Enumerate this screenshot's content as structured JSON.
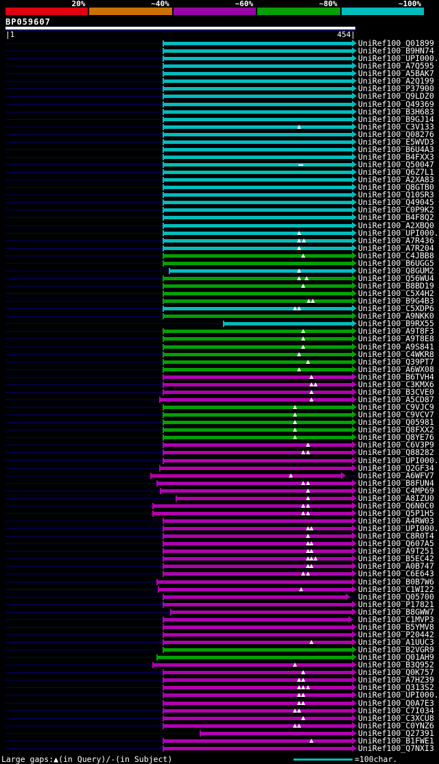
{
  "colors": {
    "cyan": "#00bcbc",
    "green": "#00a000",
    "magenta": "#b000b0",
    "red": "#e00010",
    "orange": "#cc7000",
    "purple": "#9900aa",
    "navy": "#000066",
    "background": "#000000",
    "text": "#ffffff"
  },
  "scale_bar": {
    "segments": [
      {
        "label": "20%",
        "color_key": "red"
      },
      {
        "label": "~40%",
        "color_key": "orange"
      },
      {
        "label": "~60%",
        "color_key": "purple"
      },
      {
        "label": "~80%",
        "color_key": "green"
      },
      {
        "label": "~100%",
        "color_key": "cyan"
      }
    ]
  },
  "query": {
    "name": "BP059607",
    "start": 1,
    "end": 454,
    "start_label": "|1",
    "end_label": "454|"
  },
  "footer": {
    "gaps_legend": "Large gaps:▲(in Query)/-(in Subject)",
    "scale_text": "=100char.",
    "scale_length_chars": 100
  },
  "chart_data": {
    "type": "bar",
    "orientation": "horizontal-range",
    "title": "BP059607",
    "xlabel": "query residue position",
    "x_range": [
      1,
      454
    ],
    "legend": "bar color encodes % identity: red 20%, orange ~40%, purple ~60%, green ~80%, cyan ~100%",
    "hits": [
      {
        "label": "UniRef100_Q01899",
        "color": "cyan",
        "start": 204,
        "end": 454
      },
      {
        "label": "UniRef100_B9HN74",
        "color": "cyan",
        "start": 204,
        "end": 454
      },
      {
        "label": "UniRef100_UPI000..",
        "color": "cyan",
        "start": 204,
        "end": 454
      },
      {
        "label": "UniRef100_A7Q595",
        "color": "cyan",
        "start": 204,
        "end": 454
      },
      {
        "label": "UniRef100_A5BAK7",
        "color": "cyan",
        "start": 204,
        "end": 454
      },
      {
        "label": "UniRef100_A2Q199",
        "color": "cyan",
        "start": 204,
        "end": 454
      },
      {
        "label": "UniRef100_P37900",
        "color": "cyan",
        "start": 204,
        "end": 454
      },
      {
        "label": "UniRef100_Q9LDZ0",
        "color": "cyan",
        "start": 204,
        "end": 454
      },
      {
        "label": "UniRef100_Q49369",
        "color": "cyan",
        "start": 204,
        "end": 454
      },
      {
        "label": "UniRef100_B3H683",
        "color": "cyan",
        "start": 204,
        "end": 454
      },
      {
        "label": "UniRef100_B9GJ14",
        "color": "cyan",
        "start": 204,
        "end": 454
      },
      {
        "label": "UniRef100_C3V133",
        "color": "cyan",
        "start": 204,
        "end": 454,
        "gaps": [
          382
        ]
      },
      {
        "label": "UniRef100_Q08276",
        "color": "cyan",
        "start": 204,
        "end": 454
      },
      {
        "label": "UniRef100_E5WVD3",
        "color": "cyan",
        "start": 204,
        "end": 454
      },
      {
        "label": "UniRef100_B6U4A3",
        "color": "cyan",
        "start": 204,
        "end": 454
      },
      {
        "label": "UniRef100_B4FXX3",
        "color": "cyan",
        "start": 204,
        "end": 454
      },
      {
        "label": "UniRef100_Q50047",
        "color": "cyan",
        "start": 204,
        "end": 454,
        "dashes": [
          383
        ]
      },
      {
        "label": "UniRef100_Q6Z7L1",
        "color": "cyan",
        "start": 204,
        "end": 454
      },
      {
        "label": "UniRef100_A2XA83",
        "color": "cyan",
        "start": 204,
        "end": 454
      },
      {
        "label": "UniRef100_Q8GTB0",
        "color": "cyan",
        "start": 204,
        "end": 454
      },
      {
        "label": "UniRef100_Q10SR3",
        "color": "cyan",
        "start": 204,
        "end": 454
      },
      {
        "label": "UniRef100_Q49045",
        "color": "cyan",
        "start": 204,
        "end": 454
      },
      {
        "label": "UniRef100_C0P9K2",
        "color": "cyan",
        "start": 204,
        "end": 454
      },
      {
        "label": "UniRef100_B4F8Q2",
        "color": "cyan",
        "start": 204,
        "end": 454
      },
      {
        "label": "UniRef100_A2XBQ0",
        "color": "cyan",
        "start": 204,
        "end": 454
      },
      {
        "label": "UniRef100_UPI000..",
        "color": "cyan",
        "start": 204,
        "end": 454,
        "gaps": [
          382
        ]
      },
      {
        "label": "UniRef100_A7R436",
        "color": "cyan",
        "start": 204,
        "end": 454,
        "gaps": [
          382,
          388
        ]
      },
      {
        "label": "UniRef100_A7R204",
        "color": "cyan",
        "start": 204,
        "end": 454,
        "gaps": [
          382
        ]
      },
      {
        "label": "UniRef100_C4JBB8",
        "color": "green",
        "start": 204,
        "end": 454,
        "gaps": [
          387
        ]
      },
      {
        "label": "UniRef100_B6UGG5",
        "color": "green",
        "start": 204,
        "end": 454
      },
      {
        "label": "UniRef100_Q8GUM2",
        "color": "cyan",
        "start": 212,
        "end": 454,
        "gaps": [
          382
        ]
      },
      {
        "label": "UniRef100_Q56WU4",
        "color": "green",
        "start": 204,
        "end": 454,
        "gaps": [
          382,
          391
        ]
      },
      {
        "label": "UniRef100_B8BD19",
        "color": "green",
        "start": 204,
        "end": 454,
        "gaps": [
          387
        ]
      },
      {
        "label": "UniRef100_C5X4H2",
        "color": "green",
        "start": 204,
        "end": 454
      },
      {
        "label": "UniRef100_B9G4B3",
        "color": "green",
        "start": 204,
        "end": 454,
        "gaps": [
          394,
          399
        ]
      },
      {
        "label": "UniRef100_C5XDP6",
        "color": "cyan",
        "start": 204,
        "end": 454,
        "gaps": [
          376,
          382
        ]
      },
      {
        "label": "UniRef100_A9NKK0",
        "color": "green",
        "start": 204,
        "end": 454
      },
      {
        "label": "UniRef100_B9RX55",
        "color": "cyan",
        "start": 283,
        "end": 454
      },
      {
        "label": "UniRef100_A9T8F3",
        "color": "green",
        "start": 204,
        "end": 454,
        "gaps": [
          387
        ]
      },
      {
        "label": "UniRef100_A9T8E8",
        "color": "green",
        "start": 204,
        "end": 454,
        "gaps": [
          387
        ]
      },
      {
        "label": "UniRef100_A9S841",
        "color": "green",
        "start": 204,
        "end": 454,
        "gaps": [
          387
        ]
      },
      {
        "label": "UniRef100_C4WKR8",
        "color": "green",
        "start": 204,
        "end": 454,
        "gaps": [
          382
        ]
      },
      {
        "label": "UniRef100_Q39PT7",
        "color": "green",
        "start": 204,
        "end": 454,
        "gaps": [
          393
        ]
      },
      {
        "label": "UniRef100_A6WX08",
        "color": "green",
        "start": 204,
        "end": 454,
        "gaps": [
          382
        ]
      },
      {
        "label": "UniRef100_B6TVH4",
        "color": "magenta",
        "start": 204,
        "end": 454,
        "gaps": [
          398
        ]
      },
      {
        "label": "UniRef100_C3KMX6",
        "color": "magenta",
        "start": 204,
        "end": 454,
        "gaps": [
          398,
          403
        ]
      },
      {
        "label": "UniRef100_B3CVE0",
        "color": "magenta",
        "start": 204,
        "end": 454,
        "gaps": [
          398
        ]
      },
      {
        "label": "UniRef100_A5CD87",
        "color": "magenta",
        "start": 200,
        "end": 454,
        "gaps": [
          398
        ]
      },
      {
        "label": "UniRef100_C9VJC9",
        "color": "green",
        "start": 204,
        "end": 454,
        "gaps": [
          376
        ]
      },
      {
        "label": "UniRef100_C9VCV7",
        "color": "green",
        "start": 204,
        "end": 454,
        "gaps": [
          376
        ]
      },
      {
        "label": "UniRef100_Q05981",
        "color": "green",
        "start": 204,
        "end": 454,
        "gaps": [
          376
        ]
      },
      {
        "label": "UniRef100_Q8FXX2",
        "color": "green",
        "start": 204,
        "end": 454,
        "gaps": [
          376
        ]
      },
      {
        "label": "UniRef100_Q8YE76",
        "color": "green",
        "start": 204,
        "end": 454,
        "gaps": [
          376
        ]
      },
      {
        "label": "UniRef100_C6V3P9",
        "color": "magenta",
        "start": 204,
        "end": 454,
        "gaps": [
          393
        ]
      },
      {
        "label": "UniRef100_Q88282",
        "color": "magenta",
        "start": 204,
        "end": 454,
        "gaps": [
          387,
          393
        ]
      },
      {
        "label": "UniRef100_UPI000..",
        "color": "magenta",
        "start": 204,
        "end": 454
      },
      {
        "label": "UniRef100_Q2GF34",
        "color": "magenta",
        "start": 200,
        "end": 454
      },
      {
        "label": "UniRef100_A6WFV7",
        "color": "magenta",
        "start": 188,
        "end": 440,
        "gaps": [
          371
        ]
      },
      {
        "label": "UniRef100_B8FUN4",
        "color": "magenta",
        "start": 196,
        "end": 454,
        "gaps": [
          387,
          393
        ]
      },
      {
        "label": "UniRef100_C4MP69",
        "color": "magenta",
        "start": 201,
        "end": 454,
        "gaps": [
          393
        ]
      },
      {
        "label": "UniRef100_A8IZU0",
        "color": "magenta",
        "start": 221,
        "end": 454,
        "gaps": [
          393
        ]
      },
      {
        "label": "UniRef100_Q6N0C0",
        "color": "magenta",
        "start": 191,
        "end": 454,
        "gaps": [
          387,
          393
        ]
      },
      {
        "label": "UniRef100_Q5P1H5",
        "color": "magenta",
        "start": 191,
        "end": 454,
        "gaps": [
          387,
          393
        ]
      },
      {
        "label": "UniRef100_A4RW03",
        "color": "magenta",
        "start": 204,
        "end": 454
      },
      {
        "label": "UniRef100_UPI000..",
        "color": "magenta",
        "start": 204,
        "end": 454,
        "gaps": [
          393,
          398
        ]
      },
      {
        "label": "UniRef100_C8R0T4",
        "color": "magenta",
        "start": 204,
        "end": 454,
        "gaps": [
          393
        ]
      },
      {
        "label": "UniRef100_Q607A5",
        "color": "magenta",
        "start": 204,
        "end": 454,
        "gaps": [
          393,
          398
        ]
      },
      {
        "label": "UniRef100_A9T251",
        "color": "magenta",
        "start": 204,
        "end": 454,
        "gaps": [
          393,
          398
        ]
      },
      {
        "label": "UniRef100_B5EC42",
        "color": "magenta",
        "start": 204,
        "end": 454,
        "gaps": [
          393,
          398,
          403
        ]
      },
      {
        "label": "UniRef100_A0B747",
        "color": "magenta",
        "start": 204,
        "end": 454,
        "gaps": [
          393,
          398
        ]
      },
      {
        "label": "UniRef100_C6E643",
        "color": "magenta",
        "start": 204,
        "end": 454,
        "gaps": [
          387,
          393
        ]
      },
      {
        "label": "UniRef100_B0B7W6",
        "color": "magenta",
        "start": 196,
        "end": 454
      },
      {
        "label": "UniRef100_C1WI22",
        "color": "magenta",
        "start": 198,
        "end": 454,
        "gaps": [
          384
        ]
      },
      {
        "label": "UniRef100_Q05700",
        "color": "magenta",
        "start": 204,
        "end": 446
      },
      {
        "label": "UniRef100_P17821",
        "color": "magenta",
        "start": 204,
        "end": 454
      },
      {
        "label": "UniRef100_B8GWW7",
        "color": "magenta",
        "start": 214,
        "end": 454
      },
      {
        "label": "UniRef100_C1MVP3",
        "color": "magenta",
        "start": 204,
        "end": 450
      },
      {
        "label": "UniRef100_B5YMV8",
        "color": "magenta",
        "start": 204,
        "end": 454
      },
      {
        "label": "UniRef100_P20442",
        "color": "magenta",
        "start": 204,
        "end": 454
      },
      {
        "label": "UniRef100_A1UUC3",
        "color": "magenta",
        "start": 204,
        "end": 454,
        "gaps": [
          398
        ]
      },
      {
        "label": "UniRef100_B2VGR9",
        "color": "green",
        "start": 204,
        "end": 454
      },
      {
        "label": "UniRef100_Q01AH9",
        "color": "green",
        "start": 196,
        "end": 454
      },
      {
        "label": "UniRef100_B3Q952",
        "color": "magenta",
        "start": 191,
        "end": 454,
        "gaps": [
          376
        ]
      },
      {
        "label": "UniRef100_Q0K757",
        "color": "magenta",
        "start": 204,
        "end": 454,
        "gaps": [
          387
        ]
      },
      {
        "label": "UniRef100_A7HZ39",
        "color": "magenta",
        "start": 204,
        "end": 454,
        "gaps": [
          382,
          387
        ]
      },
      {
        "label": "UniRef100_Q313S2",
        "color": "magenta",
        "start": 204,
        "end": 454,
        "gaps": [
          382,
          387,
          393
        ]
      },
      {
        "label": "UniRef100_UPI000..",
        "color": "magenta",
        "start": 204,
        "end": 454,
        "gaps": [
          382,
          387
        ]
      },
      {
        "label": "UniRef100_Q0A7E3",
        "color": "magenta",
        "start": 204,
        "end": 454,
        "gaps": [
          382,
          387
        ]
      },
      {
        "label": "UniRef100_C7I034",
        "color": "magenta",
        "start": 204,
        "end": 454,
        "gaps": [
          376,
          382
        ]
      },
      {
        "label": "UniRef100_C3XCU8",
        "color": "magenta",
        "start": 204,
        "end": 454,
        "gaps": [
          387
        ]
      },
      {
        "label": "UniRef100_C0YNZ6",
        "color": "magenta",
        "start": 204,
        "end": 454,
        "gaps": [
          376,
          382
        ]
      },
      {
        "label": "UniRef100_Q27391",
        "color": "magenta",
        "start": 252,
        "end": 454
      },
      {
        "label": "UniRef100_B1FWE1",
        "color": "magenta",
        "start": 204,
        "end": 454,
        "gaps": [
          398
        ]
      },
      {
        "label": "UniRef100_Q7NXI3",
        "color": "magenta",
        "start": 204,
        "end": 454
      }
    ]
  }
}
